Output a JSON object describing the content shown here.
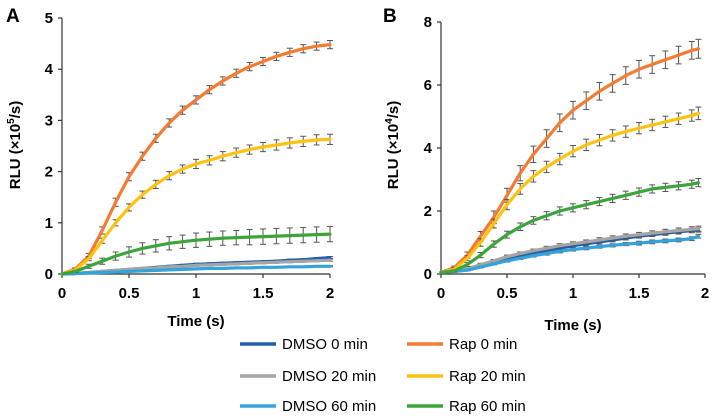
{
  "chart_data": [
    {
      "panel": "A",
      "type": "line",
      "xlabel": "Time (s)",
      "ylabel_prefix": "RLU (",
      "ylabel_mult": "×10",
      "ylabel_exp": "5",
      "ylabel_suffix": "/s)",
      "xlim": [
        0,
        2
      ],
      "ylim": [
        0,
        5
      ],
      "xticks": [
        0,
        0.5,
        1,
        1.5,
        2
      ],
      "xtick_labels": [
        "0",
        "0.5",
        "1",
        "1.5",
        "2"
      ],
      "yticks": [
        0,
        1,
        2,
        3,
        4,
        5
      ],
      "ytick_labels": [
        "0",
        "1",
        "2",
        "3",
        "4",
        "5"
      ],
      "x": [
        0,
        0.1,
        0.2,
        0.3,
        0.4,
        0.5,
        0.6,
        0.7,
        0.8,
        0.9,
        1.0,
        1.1,
        1.2,
        1.3,
        1.4,
        1.5,
        1.6,
        1.7,
        1.8,
        1.9,
        2.0
      ],
      "series": [
        {
          "name": "DMSO 0 min",
          "color": "#1f5fad",
          "values": [
            0,
            0.01,
            0.03,
            0.05,
            0.07,
            0.09,
            0.11,
            0.13,
            0.15,
            0.17,
            0.19,
            0.2,
            0.21,
            0.22,
            0.23,
            0.24,
            0.25,
            0.27,
            0.28,
            0.3,
            0.32
          ],
          "err": [
            0,
            0,
            0.01,
            0.01,
            0.01,
            0.01,
            0.01,
            0.01,
            0.02,
            0.02,
            0.02,
            0.02,
            0.02,
            0.02,
            0.02,
            0.02,
            0.02,
            0.02,
            0.02,
            0.02,
            0.02
          ]
        },
        {
          "name": "DMSO 20 min",
          "color": "#a5a5a5",
          "values": [
            0,
            0.01,
            0.03,
            0.05,
            0.07,
            0.09,
            0.11,
            0.12,
            0.14,
            0.15,
            0.17,
            0.18,
            0.19,
            0.2,
            0.21,
            0.22,
            0.23,
            0.24,
            0.25,
            0.26,
            0.27
          ],
          "err": [
            0,
            0,
            0.01,
            0.01,
            0.01,
            0.01,
            0.01,
            0.02,
            0.02,
            0.02,
            0.02,
            0.02,
            0.02,
            0.02,
            0.02,
            0.02,
            0.02,
            0.02,
            0.02,
            0.02,
            0.02
          ]
        },
        {
          "name": "DMSO 60 min",
          "color": "#33a3dc",
          "values": [
            0,
            0.01,
            0.02,
            0.03,
            0.04,
            0.05,
            0.06,
            0.07,
            0.08,
            0.09,
            0.1,
            0.11,
            0.11,
            0.12,
            0.12,
            0.13,
            0.13,
            0.14,
            0.14,
            0.15,
            0.15
          ],
          "err": [
            0,
            0,
            0.01,
            0.01,
            0.01,
            0.01,
            0.01,
            0.01,
            0.01,
            0.01,
            0.01,
            0.01,
            0.01,
            0.01,
            0.01,
            0.01,
            0.01,
            0.01,
            0.01,
            0.01,
            0.01
          ]
        },
        {
          "name": "Rap 0 min",
          "color": "#f47b30",
          "values": [
            0,
            0.1,
            0.35,
            0.85,
            1.4,
            1.9,
            2.3,
            2.65,
            2.95,
            3.2,
            3.4,
            3.6,
            3.77,
            3.92,
            4.05,
            4.15,
            4.25,
            4.33,
            4.4,
            4.45,
            4.48
          ],
          "err": [
            0,
            0.02,
            0.05,
            0.07,
            0.08,
            0.08,
            0.08,
            0.08,
            0.08,
            0.08,
            0.08,
            0.08,
            0.08,
            0.08,
            0.08,
            0.08,
            0.08,
            0.08,
            0.08,
            0.08,
            0.08
          ]
        },
        {
          "name": "Rap 20 min",
          "color": "#ffc20e",
          "values": [
            0,
            0.08,
            0.3,
            0.65,
            1.0,
            1.3,
            1.55,
            1.75,
            1.92,
            2.05,
            2.15,
            2.22,
            2.3,
            2.37,
            2.43,
            2.48,
            2.52,
            2.56,
            2.59,
            2.62,
            2.63
          ],
          "err": [
            0,
            0.02,
            0.04,
            0.05,
            0.06,
            0.07,
            0.07,
            0.08,
            0.08,
            0.08,
            0.09,
            0.09,
            0.09,
            0.09,
            0.09,
            0.09,
            0.1,
            0.1,
            0.1,
            0.1,
            0.1
          ]
        },
        {
          "name": "Rap 60 min",
          "color": "#3ba53b",
          "values": [
            0,
            0.05,
            0.15,
            0.25,
            0.35,
            0.43,
            0.5,
            0.55,
            0.6,
            0.63,
            0.66,
            0.68,
            0.7,
            0.71,
            0.72,
            0.73,
            0.74,
            0.75,
            0.76,
            0.77,
            0.78
          ],
          "err": [
            0,
            0.02,
            0.04,
            0.06,
            0.08,
            0.1,
            0.11,
            0.12,
            0.13,
            0.13,
            0.14,
            0.14,
            0.14,
            0.14,
            0.15,
            0.15,
            0.15,
            0.15,
            0.15,
            0.15,
            0.15
          ]
        }
      ]
    },
    {
      "panel": "B",
      "type": "line",
      "xlabel": "Time (s)",
      "ylabel_prefix": "RLU (",
      "ylabel_mult": "×10",
      "ylabel_exp": "4",
      "ylabel_suffix": "/s)",
      "xlim": [
        0,
        2
      ],
      "ylim": [
        0,
        8
      ],
      "xticks": [
        0,
        0.5,
        1,
        1.5,
        2
      ],
      "xtick_labels": [
        "0",
        "0.5",
        "1",
        "1.5",
        "2"
      ],
      "yticks": [
        0,
        2,
        4,
        6,
        8
      ],
      "ytick_labels": [
        "0",
        "2",
        "4",
        "6",
        "8"
      ],
      "x": [
        0,
        0.1,
        0.2,
        0.3,
        0.4,
        0.5,
        0.6,
        0.7,
        0.8,
        0.9,
        1.0,
        1.1,
        1.2,
        1.3,
        1.4,
        1.5,
        1.6,
        1.7,
        1.8,
        1.9,
        1.95
      ],
      "series": [
        {
          "name": "DMSO 0 min",
          "color": "#1f5fad",
          "values": [
            0.05,
            0.1,
            0.15,
            0.25,
            0.35,
            0.45,
            0.55,
            0.65,
            0.75,
            0.82,
            0.9,
            0.96,
            1.02,
            1.08,
            1.14,
            1.2,
            1.25,
            1.3,
            1.34,
            1.38,
            1.4
          ],
          "err": [
            0,
            0.02,
            0.03,
            0.03,
            0.04,
            0.04,
            0.05,
            0.05,
            0.05,
            0.05,
            0.06,
            0.06,
            0.06,
            0.06,
            0.06,
            0.06,
            0.06,
            0.07,
            0.07,
            0.07,
            0.07
          ]
        },
        {
          "name": "DMSO 20 min",
          "color": "#a5a5a5",
          "values": [
            0.05,
            0.1,
            0.17,
            0.3,
            0.42,
            0.55,
            0.65,
            0.74,
            0.82,
            0.9,
            0.96,
            1.02,
            1.08,
            1.14,
            1.2,
            1.25,
            1.3,
            1.34,
            1.38,
            1.42,
            1.44
          ],
          "err": [
            0,
            0.02,
            0.03,
            0.04,
            0.04,
            0.05,
            0.05,
            0.05,
            0.06,
            0.06,
            0.06,
            0.06,
            0.07,
            0.07,
            0.07,
            0.07,
            0.07,
            0.08,
            0.08,
            0.08,
            0.08
          ]
        },
        {
          "name": "DMSO 60 min",
          "color": "#33a3dc",
          "values": [
            0.05,
            0.08,
            0.12,
            0.22,
            0.32,
            0.42,
            0.5,
            0.58,
            0.65,
            0.72,
            0.78,
            0.82,
            0.87,
            0.91,
            0.95,
            0.98,
            1.02,
            1.05,
            1.08,
            1.12,
            1.2
          ],
          "err": [
            0,
            0.02,
            0.02,
            0.03,
            0.03,
            0.04,
            0.04,
            0.04,
            0.05,
            0.05,
            0.05,
            0.05,
            0.05,
            0.05,
            0.05,
            0.06,
            0.06,
            0.06,
            0.06,
            0.06,
            0.06
          ]
        },
        {
          "name": "Rap 0 min",
          "color": "#f47b30",
          "values": [
            0.05,
            0.2,
            0.6,
            1.2,
            1.8,
            2.5,
            3.2,
            3.8,
            4.3,
            4.8,
            5.2,
            5.5,
            5.8,
            6.05,
            6.3,
            6.5,
            6.65,
            6.8,
            6.95,
            7.1,
            7.15
          ],
          "err": [
            0,
            0.05,
            0.1,
            0.15,
            0.2,
            0.22,
            0.24,
            0.26,
            0.28,
            0.28,
            0.28,
            0.28,
            0.28,
            0.28,
            0.28,
            0.28,
            0.28,
            0.28,
            0.28,
            0.28,
            0.3
          ]
        },
        {
          "name": "Rap 20 min",
          "color": "#ffc20e",
          "values": [
            0.05,
            0.15,
            0.5,
            1.0,
            1.6,
            2.2,
            2.7,
            3.1,
            3.4,
            3.65,
            3.9,
            4.1,
            4.25,
            4.4,
            4.52,
            4.63,
            4.73,
            4.83,
            4.93,
            5.03,
            5.1
          ],
          "err": [
            0,
            0.05,
            0.08,
            0.12,
            0.14,
            0.16,
            0.17,
            0.18,
            0.18,
            0.18,
            0.18,
            0.18,
            0.18,
            0.18,
            0.18,
            0.18,
            0.18,
            0.18,
            0.18,
            0.18,
            0.2
          ]
        },
        {
          "name": "Rap 60 min",
          "color": "#3ba53b",
          "values": [
            0.05,
            0.1,
            0.3,
            0.6,
            0.95,
            1.25,
            1.5,
            1.7,
            1.85,
            2.0,
            2.1,
            2.2,
            2.3,
            2.4,
            2.5,
            2.6,
            2.7,
            2.75,
            2.8,
            2.85,
            2.9
          ],
          "err": [
            0,
            0.03,
            0.06,
            0.08,
            0.1,
            0.11,
            0.12,
            0.12,
            0.13,
            0.13,
            0.13,
            0.13,
            0.13,
            0.13,
            0.13,
            0.13,
            0.13,
            0.13,
            0.13,
            0.13,
            0.13
          ]
        }
      ]
    }
  ],
  "legend": {
    "entries": [
      {
        "label": "DMSO 0 min",
        "color": "#1f5fad"
      },
      {
        "label": "Rap 0 min",
        "color": "#f47b30"
      },
      {
        "label": "DMSO 20 min",
        "color": "#a5a5a5"
      },
      {
        "label": "Rap 20 min",
        "color": "#ffc20e"
      },
      {
        "label": "DMSO 60 min",
        "color": "#33a3dc"
      },
      {
        "label": "Rap 60 min",
        "color": "#3ba53b"
      }
    ]
  }
}
